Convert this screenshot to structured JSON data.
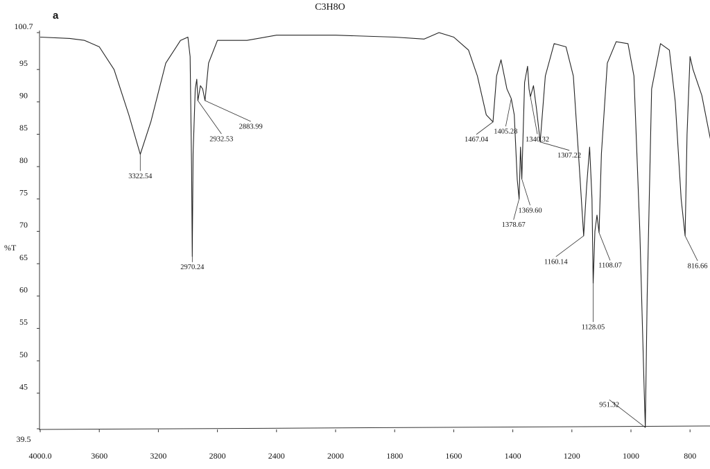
{
  "chart_data": {
    "type": "line",
    "title": "C3H8O",
    "panel_label": "a",
    "y_label": "%T",
    "color": "#222222",
    "xlim": [
      4000,
      730
    ],
    "xticks": [
      {
        "value": 4000,
        "label": "4000.0"
      },
      3600,
      3200,
      2800,
      2400,
      2000,
      1800,
      1600,
      1400,
      1200,
      1000,
      800
    ],
    "ylim": [
      39.5,
      100.7
    ],
    "yticks": [
      39.5,
      45,
      50,
      55,
      60,
      65,
      70,
      75,
      80,
      85,
      90,
      95,
      100.7
    ],
    "x": [
      4000,
      3800,
      3700,
      3600,
      3500,
      3400,
      3322.54,
      3250,
      3150,
      3050,
      3000,
      2985,
      2975,
      2970.24,
      2965,
      2950,
      2940,
      2932.53,
      2915,
      2900,
      2883.99,
      2860,
      2800,
      2600,
      2400,
      2000,
      1800,
      1700,
      1650,
      1600,
      1550,
      1520,
      1490,
      1467.04,
      1455,
      1440,
      1420,
      1405.28,
      1395,
      1385,
      1378.67,
      1374,
      1369.6,
      1360,
      1350,
      1345,
      1340.32,
      1330,
      1320,
      1307.22,
      1290,
      1260,
      1220,
      1195,
      1175,
      1160.14,
      1150,
      1140,
      1132,
      1128.05,
      1122,
      1115,
      1108.07,
      1100,
      1080,
      1050,
      1010,
      990,
      970,
      955,
      951.32,
      945,
      930,
      900,
      870,
      850,
      830,
      816.66,
      810,
      800,
      790,
      760,
      730
    ],
    "values": [
      100.0,
      99.8,
      99.5,
      98.5,
      95.0,
      88.0,
      81.9,
      87.0,
      96.0,
      99.5,
      100.0,
      97.0,
      80.0,
      66.1,
      82.0,
      92.0,
      93.5,
      90.2,
      92.5,
      92.0,
      90.2,
      96.0,
      99.5,
      99.5,
      100.3,
      100.3,
      100.0,
      99.7,
      100.7,
      100.0,
      98.0,
      94.0,
      88.0,
      86.9,
      94.0,
      96.5,
      92.0,
      90.5,
      88.0,
      78.0,
      75.0,
      83.0,
      78.1,
      93.0,
      95.5,
      92.0,
      90.8,
      92.5,
      89.0,
      83.8,
      94.0,
      99.0,
      98.5,
      94.0,
      80.0,
      69.3,
      77.0,
      83.0,
      75.0,
      62.0,
      70.0,
      72.5,
      69.8,
      82.0,
      96.0,
      99.3,
      99.0,
      94.0,
      70.0,
      45.0,
      39.7,
      60.0,
      92.0,
      99.0,
      98.0,
      90.0,
      75.0,
      69.3,
      85.0,
      97.0,
      95.0,
      91.0,
      84.0
    ],
    "peaks": {
      "x": [
        3322.54,
        2970.24,
        2932.53,
        2883.99,
        1467.04,
        1405.28,
        1378.67,
        {
          "value": 1369.6,
          "label": "1369.60"
        },
        1340.32,
        1307.22,
        1160.14,
        1128.05,
        1108.07,
        951.32,
        816.66
      ],
      "y": [
        81.9,
        66.1,
        90.2,
        90.2,
        86.9,
        90.5,
        75.0,
        78.1,
        90.8,
        83.8,
        69.3,
        62.0,
        69.8,
        39.7,
        69.3
      ]
    }
  }
}
